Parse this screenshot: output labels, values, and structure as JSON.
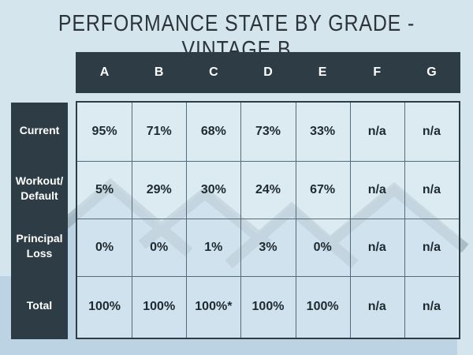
{
  "title": "PERFORMANCE STATE BY GRADE - VINTAGE B",
  "table": {
    "columns": [
      "A",
      "B",
      "C",
      "D",
      "E",
      "F",
      "G"
    ],
    "row_labels": [
      "Current",
      "Workout/ Default",
      "Principal Loss",
      "Total"
    ],
    "rows": [
      [
        "95%",
        "71%",
        "68%",
        "73%",
        "33%",
        "n/a",
        "n/a"
      ],
      [
        "5%",
        "29%",
        "30%",
        "24%",
        "67%",
        "n/a",
        "n/a"
      ],
      [
        "0%",
        "0%",
        "1%",
        "3%",
        "0%",
        "n/a",
        "n/a"
      ],
      [
        "100%",
        "100%",
        "100%*",
        "100%",
        "100%",
        "n/a",
        "n/a"
      ]
    ]
  }
}
